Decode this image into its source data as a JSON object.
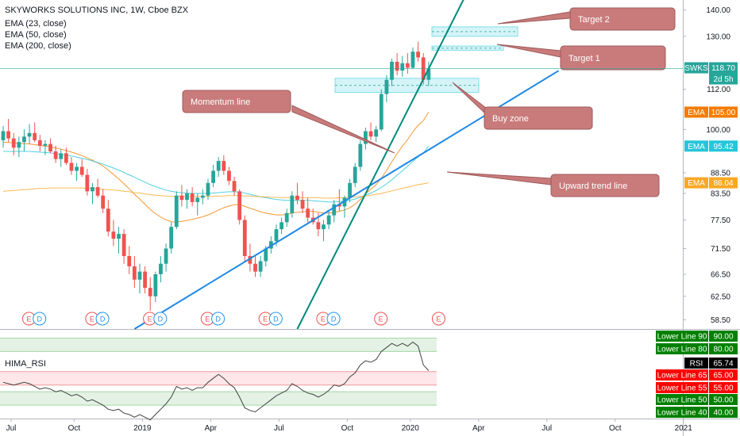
{
  "header": {
    "title": "SKYWORKS SOLUTIONS INC, 1W, Cboe BZX",
    "indicators": [
      "EMA (23, close)",
      "EMA (50, close)",
      "EMA (200, close)"
    ]
  },
  "price_axis": {
    "ticks": [
      "140.00",
      "130.00",
      "112.00",
      "100.00",
      "88.50",
      "83.50",
      "77.50",
      "71.50",
      "66.50",
      "62.50",
      "58.50"
    ],
    "tags": [
      {
        "label": "SWKS",
        "value": "118.70",
        "color": "#26a69a"
      },
      {
        "label": "",
        "value": "2d 5h",
        "color": "#26a69a"
      },
      {
        "label": "EMA",
        "value": "105.00",
        "color": "#f57c00"
      },
      {
        "label": "EMA",
        "value": "95.42",
        "color": "#26c6da"
      },
      {
        "label": "EMA",
        "value": "86.04",
        "color": "#f9a825"
      }
    ]
  },
  "time_axis": {
    "ticks": [
      "Jul",
      "Oct",
      "2019",
      "Apr",
      "Jul",
      "Oct",
      "2020",
      "Apr",
      "Jul",
      "Oct",
      "2021"
    ]
  },
  "annotations": [
    {
      "text": "Target 2"
    },
    {
      "text": "Target 1"
    },
    {
      "text": "Momentum line"
    },
    {
      "text": "Buy zone"
    },
    {
      "text": "Upward trend line"
    }
  ],
  "earnings_markers": [
    "E",
    "D",
    "E",
    "D",
    "E",
    "D",
    "E",
    "D",
    "E",
    "D",
    "E",
    "D",
    "E",
    "E"
  ],
  "rsi_panel": {
    "title": "HIMA_RSI",
    "tags": [
      {
        "label": "Lower Line 90",
        "value": "90.00",
        "color": "#008000"
      },
      {
        "label": "Lower Line 80",
        "value": "80.00",
        "color": "#008000"
      },
      {
        "label": "RSI",
        "value": "65.74",
        "color": "#000000"
      },
      {
        "label": "Lower Line 65",
        "value": "65.00",
        "color": "#ff0000"
      },
      {
        "label": "Lower Line 55",
        "value": "55.00",
        "color": "#ff0000"
      },
      {
        "label": "Lower Line 50",
        "value": "50.00",
        "color": "#008000"
      },
      {
        "label": "Lower Line 40",
        "value": "40.00",
        "color": "#008000"
      }
    ]
  },
  "colors": {
    "up": "#26a69a",
    "down": "#ef5350",
    "ema23": "#f57c00",
    "ema50": "#26c6da",
    "ema200": "#f9a825",
    "trend": "#1e88e5",
    "momentum": "#00897b",
    "note_bg": "#c97b7b"
  },
  "chart_data": {
    "type": "candlestick",
    "title": "SKYWORKS SOLUTIONS INC, 1W, Cboe BZX",
    "ylim": [
      57,
      144
    ],
    "y_scale": "log",
    "last_price": 118.7,
    "candles": [
      [
        97.0,
        101.0,
        95.0,
        99.5
      ],
      [
        99.5,
        103.0,
        96.5,
        97.5
      ],
      [
        97.5,
        99.0,
        93.0,
        95.0
      ],
      [
        95.0,
        98.0,
        92.5,
        96.5
      ],
      [
        96.5,
        100.0,
        94.0,
        98.0
      ],
      [
        98.0,
        101.5,
        96.0,
        99.0
      ],
      [
        99.0,
        102.0,
        96.5,
        97.0
      ],
      [
        97.0,
        98.5,
        94.0,
        95.5
      ],
      [
        95.5,
        97.0,
        93.0,
        96.0
      ],
      [
        96.0,
        97.5,
        93.5,
        94.0
      ],
      [
        94.0,
        95.5,
        91.0,
        92.0
      ],
      [
        92.0,
        94.5,
        90.0,
        93.5
      ],
      [
        93.5,
        95.0,
        90.5,
        91.0
      ],
      [
        91.0,
        92.5,
        88.0,
        89.0
      ],
      [
        89.0,
        91.0,
        86.5,
        90.0
      ],
      [
        90.0,
        92.0,
        87.5,
        88.0
      ],
      [
        88.0,
        89.5,
        83.0,
        84.0
      ],
      [
        84.0,
        86.0,
        81.0,
        85.0
      ],
      [
        85.0,
        87.0,
        82.5,
        83.0
      ],
      [
        83.0,
        84.5,
        79.0,
        80.0
      ],
      [
        80.0,
        82.0,
        74.0,
        75.0
      ],
      [
        75.0,
        77.5,
        72.0,
        73.5
      ],
      [
        73.5,
        76.0,
        70.5,
        74.5
      ],
      [
        74.5,
        75.5,
        68.5,
        70.0
      ],
      [
        70.0,
        72.0,
        66.5,
        68.0
      ],
      [
        68.0,
        70.0,
        64.0,
        65.5
      ],
      [
        65.5,
        68.5,
        63.0,
        67.0
      ],
      [
        67.0,
        68.0,
        63.0,
        64.0
      ],
      [
        64.0,
        66.0,
        60.0,
        62.5
      ],
      [
        62.5,
        67.0,
        61.5,
        66.5
      ],
      [
        66.5,
        70.0,
        65.0,
        68.5
      ],
      [
        68.5,
        72.5,
        67.0,
        71.5
      ],
      [
        71.5,
        77.0,
        70.5,
        76.0
      ],
      [
        76.0,
        84.0,
        75.5,
        83.0
      ],
      [
        83.0,
        85.5,
        80.5,
        82.0
      ],
      [
        82.0,
        84.5,
        80.0,
        83.5
      ],
      [
        83.5,
        85.0,
        80.5,
        81.5
      ],
      [
        81.5,
        83.5,
        78.5,
        82.5
      ],
      [
        82.5,
        84.5,
        81.0,
        83.0
      ],
      [
        83.0,
        87.0,
        82.0,
        86.0
      ],
      [
        86.0,
        90.5,
        85.0,
        89.0
      ],
      [
        89.0,
        92.5,
        87.5,
        91.5
      ],
      [
        91.5,
        93.0,
        88.0,
        89.0
      ],
      [
        89.0,
        90.0,
        85.5,
        86.5
      ],
      [
        86.5,
        87.5,
        83.0,
        84.0
      ],
      [
        84.0,
        84.5,
        76.5,
        77.5
      ],
      [
        77.5,
        78.5,
        69.0,
        70.0
      ],
      [
        70.0,
        72.5,
        67.0,
        68.5
      ],
      [
        68.5,
        70.0,
        66.0,
        67.0
      ],
      [
        67.0,
        70.0,
        66.0,
        69.0
      ],
      [
        69.0,
        72.0,
        68.0,
        71.5
      ],
      [
        71.5,
        74.0,
        70.5,
        73.0
      ],
      [
        73.0,
        76.5,
        72.0,
        75.5
      ],
      [
        75.5,
        78.0,
        74.5,
        77.0
      ],
      [
        77.0,
        80.0,
        76.0,
        79.0
      ],
      [
        79.0,
        84.0,
        78.0,
        83.0
      ],
      [
        83.0,
        86.0,
        81.0,
        82.0
      ],
      [
        82.0,
        84.0,
        79.0,
        80.0
      ],
      [
        80.0,
        82.5,
        77.0,
        78.0
      ],
      [
        78.0,
        80.0,
        76.5,
        77.0
      ],
      [
        77.0,
        79.0,
        74.0,
        75.5
      ],
      [
        75.5,
        77.5,
        73.0,
        76.5
      ],
      [
        76.5,
        79.5,
        75.5,
        78.5
      ],
      [
        78.5,
        82.0,
        77.0,
        81.0
      ],
      [
        81.0,
        84.5,
        79.5,
        80.5
      ],
      [
        80.5,
        83.0,
        78.0,
        82.5
      ],
      [
        82.5,
        87.0,
        81.5,
        86.0
      ],
      [
        86.0,
        91.0,
        85.0,
        90.0
      ],
      [
        90.0,
        97.0,
        89.0,
        96.0
      ],
      [
        96.0,
        100.5,
        94.5,
        99.5
      ],
      [
        99.5,
        102.0,
        97.0,
        98.0
      ],
      [
        98.0,
        101.0,
        96.5,
        100.0
      ],
      [
        100.0,
        112.0,
        99.5,
        110.5
      ],
      [
        110.5,
        116.5,
        108.0,
        115.0
      ],
      [
        115.0,
        122.0,
        113.0,
        121.0
      ],
      [
        121.0,
        124.0,
        116.5,
        118.0
      ],
      [
        118.0,
        123.0,
        116.0,
        120.5
      ],
      [
        120.5,
        124.0,
        117.0,
        119.0
      ],
      [
        119.0,
        126.0,
        118.5,
        124.5
      ],
      [
        124.5,
        128.0,
        121.0,
        122.5
      ],
      [
        122.5,
        124.0,
        113.5,
        115.0
      ],
      [
        115.0,
        121.0,
        113.0,
        118.7
      ]
    ],
    "ema23": [
      96.5,
      96.4,
      96.3,
      96.2,
      96.1,
      96.0,
      95.8,
      95.6,
      95.4,
      95.2,
      94.9,
      94.6,
      94.2,
      93.8,
      93.4,
      92.9,
      92.3,
      91.7,
      91.0,
      90.2,
      89.2,
      88.1,
      87.0,
      85.8,
      84.6,
      83.3,
      82.2,
      81.0,
      79.8,
      78.9,
      78.1,
      77.5,
      77.1,
      77.0,
      77.2,
      77.4,
      77.6,
      77.9,
      78.2,
      78.6,
      79.1,
      79.7,
      80.2,
      80.6,
      80.9,
      80.9,
      80.5,
      80.1,
      79.7,
      79.3,
      79.0,
      78.8,
      78.6,
      78.6,
      78.7,
      79.0,
      79.2,
      79.3,
      79.4,
      79.4,
      79.2,
      79.0,
      79.0,
      79.2,
      79.4,
      79.7,
      80.2,
      81.0,
      82.1,
      83.4,
      84.5,
      85.6,
      87.2,
      89.1,
      91.3,
      93.4,
      95.4,
      97.2,
      99.3,
      101.2,
      102.5,
      105.0
    ],
    "ema50": [
      94.0,
      94.0,
      94.0,
      94.0,
      94.0,
      94.0,
      93.9,
      93.8,
      93.7,
      93.6,
      93.4,
      93.2,
      93.0,
      92.8,
      92.5,
      92.2,
      91.9,
      91.5,
      91.1,
      90.7,
      90.2,
      89.7,
      89.2,
      88.6,
      88.0,
      87.4,
      86.8,
      86.2,
      85.6,
      85.1,
      84.7,
      84.3,
      84.0,
      83.8,
      83.7,
      83.6,
      83.5,
      83.5,
      83.5,
      83.5,
      83.6,
      83.7,
      83.8,
      83.9,
      83.9,
      83.8,
      83.6,
      83.3,
      83.0,
      82.7,
      82.5,
      82.3,
      82.1,
      82.0,
      81.9,
      81.9,
      81.9,
      81.9,
      81.9,
      81.8,
      81.7,
      81.6,
      81.5,
      81.5,
      81.6,
      81.7,
      81.9,
      82.2,
      82.6,
      83.1,
      83.6,
      84.2,
      84.9,
      85.8,
      86.8,
      87.9,
      89.0,
      90.2,
      91.4,
      92.6,
      93.6,
      95.42
    ],
    "ema200": [
      84.0,
      84.1,
      84.2,
      84.3,
      84.4,
      84.5,
      84.6,
      84.7,
      84.7,
      84.8,
      84.8,
      84.8,
      84.8,
      84.8,
      84.8,
      84.8,
      84.7,
      84.7,
      84.6,
      84.5,
      84.4,
      84.3,
      84.2,
      84.0,
      83.9,
      83.7,
      83.6,
      83.4,
      83.2,
      83.1,
      83.0,
      82.9,
      82.8,
      82.8,
      82.8,
      82.8,
      82.8,
      82.8,
      82.8,
      82.8,
      82.8,
      82.9,
      82.9,
      83.0,
      83.0,
      83.0,
      82.9,
      82.9,
      82.8,
      82.7,
      82.7,
      82.6,
      82.6,
      82.5,
      82.5,
      82.5,
      82.5,
      82.5,
      82.5,
      82.5,
      82.5,
      82.4,
      82.4,
      82.4,
      82.5,
      82.5,
      82.6,
      82.7,
      82.8,
      82.9,
      83.1,
      83.3,
      83.5,
      83.8,
      84.1,
      84.4,
      84.7,
      85.0,
      85.3,
      85.6,
      85.8,
      86.04
    ],
    "rsi": [
      57,
      56,
      55,
      56,
      57,
      56,
      54,
      52,
      53,
      52,
      50,
      51,
      49,
      47,
      48,
      46,
      43,
      44,
      42,
      40,
      37,
      36,
      37,
      34,
      33,
      31,
      33,
      31,
      29,
      33,
      37,
      41,
      46,
      54,
      52,
      53,
      51,
      53,
      53,
      57,
      60,
      63,
      60,
      56,
      53,
      46,
      38,
      36,
      35,
      38,
      41,
      44,
      47,
      49,
      51,
      56,
      54,
      51,
      49,
      48,
      46,
      48,
      51,
      55,
      54,
      56,
      61,
      64,
      70,
      73,
      72,
      74,
      80,
      83,
      86,
      84,
      86,
      84,
      87,
      84,
      70,
      65.74
    ],
    "rsi_levels": [
      90,
      80,
      65,
      55,
      50,
      40
    ],
    "zones": [
      {
        "name": "Target 2",
        "low": 130.0,
        "high": 133.5
      },
      {
        "name": "Target 1",
        "low": 125.0,
        "high": 126.5
      },
      {
        "name": "Buy zone",
        "low": 111.0,
        "high": 115.5
      }
    ],
    "lines": [
      {
        "name": "Upward trend line",
        "from": [
          25,
          57.0
        ],
        "to": [
          105,
          118.0
        ]
      },
      {
        "name": "Momentum line",
        "from": [
          56,
          57.0
        ],
        "to": [
          89,
          150.0
        ]
      }
    ],
    "earnings": [
      {
        "kind": "E",
        "at": 4
      },
      {
        "kind": "D",
        "at": 6
      },
      {
        "kind": "E",
        "at": 16
      },
      {
        "kind": "D",
        "at": 18
      },
      {
        "kind": "E",
        "at": 27
      },
      {
        "kind": "D",
        "at": 29
      },
      {
        "kind": "E",
        "at": 38
      },
      {
        "kind": "D",
        "at": 40
      },
      {
        "kind": "E",
        "at": 49
      },
      {
        "kind": "D",
        "at": 51
      },
      {
        "kind": "E",
        "at": 60
      },
      {
        "kind": "D",
        "at": 62
      },
      {
        "kind": "E",
        "at": 71
      },
      {
        "kind": "E",
        "at": 82
      }
    ],
    "time_ticks": [
      0,
      12,
      25,
      38,
      51,
      64,
      76,
      89,
      102,
      115,
      128
    ]
  }
}
